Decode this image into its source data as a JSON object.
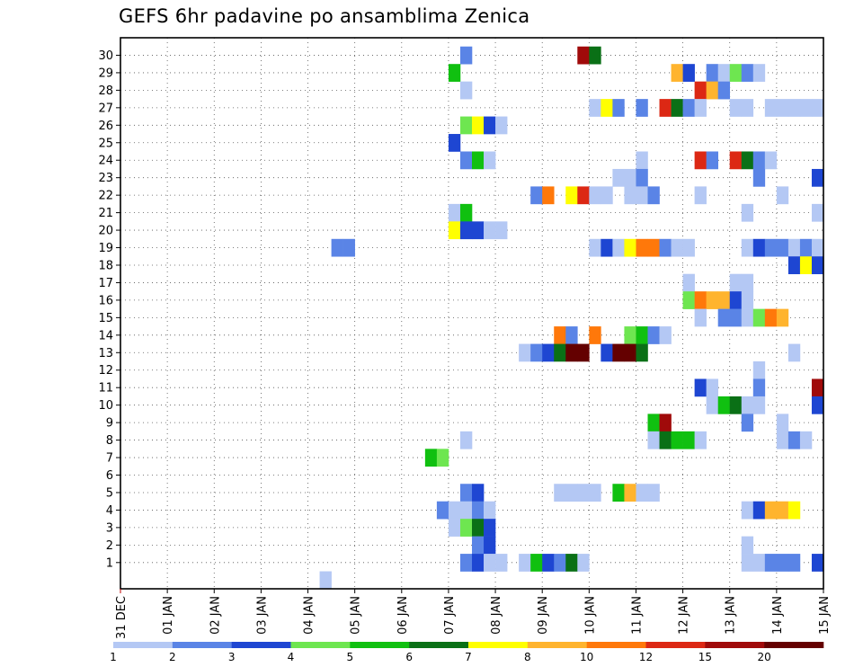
{
  "chart_data": {
    "type": "heatmap",
    "title": "GEFS 6hr padavine po ansamblima Zenica",
    "xlabel": "",
    "ylabel": "",
    "x_ticks": [
      "31 DEC",
      "01 JAN",
      "02 JAN",
      "03 JAN",
      "04 JAN",
      "05 JAN",
      "06 JAN",
      "07 JAN",
      "08 JAN",
      "09 JAN",
      "10 JAN",
      "11 JAN",
      "12 JAN",
      "13 JAN",
      "14 JAN",
      "15 JAN"
    ],
    "y_ticks": [
      "1",
      "2",
      "3",
      "4",
      "5",
      "6",
      "7",
      "8",
      "9",
      "10",
      "11",
      "12",
      "13",
      "14",
      "15",
      "16",
      "17",
      "18",
      "19",
      "20",
      "21",
      "22",
      "23",
      "24",
      "25",
      "26",
      "27",
      "28",
      "29",
      "30"
    ],
    "time_step_hours": 6,
    "members": 30,
    "grid": "dotted",
    "colorbar": {
      "position": "bottom",
      "labels": [
        "1",
        "2",
        "3",
        "4",
        "5",
        "6",
        "7",
        "8",
        "10",
        "12",
        "15",
        "20"
      ],
      "colors": [
        "#b4c8f4",
        "#5a84e6",
        "#1e46d2",
        "#6ee650",
        "#10c010",
        "#0a7016",
        "#ffff00",
        "#ffb42e",
        "#ff780a",
        "#dc2814",
        "#a00a0a",
        "#640000"
      ]
    },
    "cells": [
      {
        "m": 30,
        "t": 29,
        "c": 1
      },
      {
        "m": 30,
        "t": 39,
        "c": 10
      },
      {
        "m": 30,
        "t": 40,
        "c": 5
      },
      {
        "m": 29,
        "t": 28,
        "c": 4
      },
      {
        "m": 29,
        "t": 47,
        "c": 7
      },
      {
        "m": 29,
        "t": 48,
        "c": 2
      },
      {
        "m": 29,
        "t": 50,
        "c": 1
      },
      {
        "m": 29,
        "t": 51,
        "c": 0
      },
      {
        "m": 29,
        "t": 52,
        "c": 3
      },
      {
        "m": 29,
        "t": 53,
        "c": 1
      },
      {
        "m": 29,
        "t": 54,
        "c": 0
      },
      {
        "m": 28,
        "t": 29,
        "c": 0
      },
      {
        "m": 28,
        "t": 49,
        "c": 9
      },
      {
        "m": 28,
        "t": 50,
        "c": 7
      },
      {
        "m": 28,
        "t": 51,
        "c": 1
      },
      {
        "m": 27,
        "t": 40,
        "c": 0
      },
      {
        "m": 27,
        "t": 41,
        "c": 6
      },
      {
        "m": 27,
        "t": 42,
        "c": 1
      },
      {
        "m": 27,
        "t": 44,
        "c": 1
      },
      {
        "m": 27,
        "t": 46,
        "c": 9
      },
      {
        "m": 27,
        "t": 47,
        "c": 5
      },
      {
        "m": 27,
        "t": 48,
        "c": 1
      },
      {
        "m": 27,
        "t": 49,
        "c": 0
      },
      {
        "m": 27,
        "t": 52,
        "c": 0
      },
      {
        "m": 27,
        "t": 53,
        "c": 0
      },
      {
        "m": 27,
        "t": 55,
        "c": 0
      },
      {
        "m": 27,
        "t": 56,
        "c": 0
      },
      {
        "m": 27,
        "t": 57,
        "c": 0
      },
      {
        "m": 27,
        "t": 58,
        "c": 0
      },
      {
        "m": 27,
        "t": 59,
        "c": 0
      },
      {
        "m": 26,
        "t": 29,
        "c": 3
      },
      {
        "m": 26,
        "t": 30,
        "c": 6
      },
      {
        "m": 26,
        "t": 31,
        "c": 2
      },
      {
        "m": 26,
        "t": 32,
        "c": 0
      },
      {
        "m": 25,
        "t": 28,
        "c": 2
      },
      {
        "m": 24,
        "t": 29,
        "c": 1
      },
      {
        "m": 24,
        "t": 30,
        "c": 4
      },
      {
        "m": 24,
        "t": 31,
        "c": 0
      },
      {
        "m": 24,
        "t": 44,
        "c": 0
      },
      {
        "m": 24,
        "t": 49,
        "c": 9
      },
      {
        "m": 24,
        "t": 50,
        "c": 1
      },
      {
        "m": 24,
        "t": 52,
        "c": 9
      },
      {
        "m": 24,
        "t": 53,
        "c": 5
      },
      {
        "m": 24,
        "t": 54,
        "c": 1
      },
      {
        "m": 24,
        "t": 55,
        "c": 0
      },
      {
        "m": 23,
        "t": 42,
        "c": 0
      },
      {
        "m": 23,
        "t": 43,
        "c": 0
      },
      {
        "m": 23,
        "t": 44,
        "c": 1
      },
      {
        "m": 23,
        "t": 54,
        "c": 1
      },
      {
        "m": 23,
        "t": 59,
        "c": 2
      },
      {
        "m": 22,
        "t": 35,
        "c": 1
      },
      {
        "m": 22,
        "t": 36,
        "c": 8
      },
      {
        "m": 22,
        "t": 38,
        "c": 6
      },
      {
        "m": 22,
        "t": 39,
        "c": 9
      },
      {
        "m": 22,
        "t": 40,
        "c": 0
      },
      {
        "m": 22,
        "t": 41,
        "c": 0
      },
      {
        "m": 22,
        "t": 43,
        "c": 0
      },
      {
        "m": 22,
        "t": 44,
        "c": 0
      },
      {
        "m": 22,
        "t": 45,
        "c": 1
      },
      {
        "m": 22,
        "t": 49,
        "c": 0
      },
      {
        "m": 22,
        "t": 56,
        "c": 0
      },
      {
        "m": 21,
        "t": 28,
        "c": 0
      },
      {
        "m": 21,
        "t": 29,
        "c": 4
      },
      {
        "m": 21,
        "t": 53,
        "c": 0
      },
      {
        "m": 21,
        "t": 59,
        "c": 0
      },
      {
        "m": 20,
        "t": 28,
        "c": 6
      },
      {
        "m": 20,
        "t": 29,
        "c": 2
      },
      {
        "m": 20,
        "t": 30,
        "c": 2
      },
      {
        "m": 20,
        "t": 31,
        "c": 0
      },
      {
        "m": 20,
        "t": 32,
        "c": 0
      },
      {
        "m": 19,
        "t": 18,
        "c": 1
      },
      {
        "m": 19,
        "t": 19,
        "c": 1
      },
      {
        "m": 19,
        "t": 40,
        "c": 0
      },
      {
        "m": 19,
        "t": 41,
        "c": 2
      },
      {
        "m": 19,
        "t": 42,
        "c": 0
      },
      {
        "m": 19,
        "t": 43,
        "c": 6
      },
      {
        "m": 19,
        "t": 44,
        "c": 8
      },
      {
        "m": 19,
        "t": 45,
        "c": 8
      },
      {
        "m": 19,
        "t": 46,
        "c": 1
      },
      {
        "m": 19,
        "t": 47,
        "c": 0
      },
      {
        "m": 19,
        "t": 48,
        "c": 0
      },
      {
        "m": 19,
        "t": 53,
        "c": 0
      },
      {
        "m": 19,
        "t": 54,
        "c": 2
      },
      {
        "m": 19,
        "t": 55,
        "c": 1
      },
      {
        "m": 19,
        "t": 56,
        "c": 1
      },
      {
        "m": 19,
        "t": 57,
        "c": 0
      },
      {
        "m": 19,
        "t": 58,
        "c": 1
      },
      {
        "m": 19,
        "t": 59,
        "c": 0
      },
      {
        "m": 18,
        "t": 57,
        "c": 2
      },
      {
        "m": 18,
        "t": 58,
        "c": 6
      },
      {
        "m": 18,
        "t": 59,
        "c": 2
      },
      {
        "m": 17,
        "t": 48,
        "c": 0
      },
      {
        "m": 17,
        "t": 52,
        "c": 0
      },
      {
        "m": 17,
        "t": 53,
        "c": 0
      },
      {
        "m": 16,
        "t": 48,
        "c": 3
      },
      {
        "m": 16,
        "t": 49,
        "c": 8
      },
      {
        "m": 16,
        "t": 50,
        "c": 7
      },
      {
        "m": 16,
        "t": 51,
        "c": 7
      },
      {
        "m": 16,
        "t": 52,
        "c": 2
      },
      {
        "m": 16,
        "t": 53,
        "c": 0
      },
      {
        "m": 15,
        "t": 49,
        "c": 0
      },
      {
        "m": 15,
        "t": 51,
        "c": 1
      },
      {
        "m": 15,
        "t": 52,
        "c": 1
      },
      {
        "m": 15,
        "t": 53,
        "c": 0
      },
      {
        "m": 15,
        "t": 54,
        "c": 3
      },
      {
        "m": 15,
        "t": 55,
        "c": 8
      },
      {
        "m": 15,
        "t": 56,
        "c": 7
      },
      {
        "m": 14,
        "t": 37,
        "c": 8
      },
      {
        "m": 14,
        "t": 38,
        "c": 1
      },
      {
        "m": 14,
        "t": 40,
        "c": 8
      },
      {
        "m": 14,
        "t": 43,
        "c": 3
      },
      {
        "m": 14,
        "t": 44,
        "c": 4
      },
      {
        "m": 14,
        "t": 45,
        "c": 1
      },
      {
        "m": 14,
        "t": 46,
        "c": 0
      },
      {
        "m": 13,
        "t": 34,
        "c": 0
      },
      {
        "m": 13,
        "t": 35,
        "c": 1
      },
      {
        "m": 13,
        "t": 36,
        "c": 2
      },
      {
        "m": 13,
        "t": 37,
        "c": 5
      },
      {
        "m": 13,
        "t": 38,
        "c": 11
      },
      {
        "m": 13,
        "t": 39,
        "c": 11
      },
      {
        "m": 13,
        "t": 41,
        "c": 2
      },
      {
        "m": 13,
        "t": 42,
        "c": 11
      },
      {
        "m": 13,
        "t": 43,
        "c": 11
      },
      {
        "m": 13,
        "t": 44,
        "c": 5
      },
      {
        "m": 13,
        "t": 57,
        "c": 0
      },
      {
        "m": 12,
        "t": 54,
        "c": 0
      },
      {
        "m": 11,
        "t": 49,
        "c": 2
      },
      {
        "m": 11,
        "t": 50,
        "c": 0
      },
      {
        "m": 11,
        "t": 54,
        "c": 1
      },
      {
        "m": 11,
        "t": 59,
        "c": 10
      },
      {
        "m": 10,
        "t": 50,
        "c": 0
      },
      {
        "m": 10,
        "t": 51,
        "c": 4
      },
      {
        "m": 10,
        "t": 52,
        "c": 5
      },
      {
        "m": 10,
        "t": 53,
        "c": 0
      },
      {
        "m": 10,
        "t": 54,
        "c": 0
      },
      {
        "m": 10,
        "t": 59,
        "c": 2
      },
      {
        "m": 9,
        "t": 45,
        "c": 4
      },
      {
        "m": 9,
        "t": 46,
        "c": 10
      },
      {
        "m": 9,
        "t": 53,
        "c": 1
      },
      {
        "m": 9,
        "t": 56,
        "c": 0
      },
      {
        "m": 8,
        "t": 29,
        "c": 0
      },
      {
        "m": 8,
        "t": 45,
        "c": 0
      },
      {
        "m": 8,
        "t": 46,
        "c": 5
      },
      {
        "m": 8,
        "t": 47,
        "c": 4
      },
      {
        "m": 8,
        "t": 48,
        "c": 4
      },
      {
        "m": 8,
        "t": 49,
        "c": 0
      },
      {
        "m": 8,
        "t": 56,
        "c": 0
      },
      {
        "m": 8,
        "t": 57,
        "c": 1
      },
      {
        "m": 8,
        "t": 58,
        "c": 0
      },
      {
        "m": 7,
        "t": 26,
        "c": 4
      },
      {
        "m": 7,
        "t": 27,
        "c": 3
      },
      {
        "m": 5,
        "t": 29,
        "c": 1
      },
      {
        "m": 5,
        "t": 30,
        "c": 2
      },
      {
        "m": 5,
        "t": 37,
        "c": 0
      },
      {
        "m": 5,
        "t": 38,
        "c": 0
      },
      {
        "m": 5,
        "t": 39,
        "c": 0
      },
      {
        "m": 5,
        "t": 40,
        "c": 0
      },
      {
        "m": 5,
        "t": 42,
        "c": 4
      },
      {
        "m": 5,
        "t": 43,
        "c": 7
      },
      {
        "m": 5,
        "t": 44,
        "c": 0
      },
      {
        "m": 5,
        "t": 45,
        "c": 0
      },
      {
        "m": 4,
        "t": 27,
        "c": 1
      },
      {
        "m": 4,
        "t": 28,
        "c": 0
      },
      {
        "m": 4,
        "t": 29,
        "c": 0
      },
      {
        "m": 4,
        "t": 30,
        "c": 1
      },
      {
        "m": 4,
        "t": 31,
        "c": 0
      },
      {
        "m": 4,
        "t": 53,
        "c": 0
      },
      {
        "m": 4,
        "t": 54,
        "c": 2
      },
      {
        "m": 4,
        "t": 55,
        "c": 7
      },
      {
        "m": 4,
        "t": 56,
        "c": 7
      },
      {
        "m": 4,
        "t": 57,
        "c": 6
      },
      {
        "m": 3,
        "t": 28,
        "c": 0
      },
      {
        "m": 3,
        "t": 29,
        "c": 3
      },
      {
        "m": 3,
        "t": 30,
        "c": 5
      },
      {
        "m": 3,
        "t": 31,
        "c": 2
      },
      {
        "m": 2,
        "t": 30,
        "c": 1
      },
      {
        "m": 2,
        "t": 31,
        "c": 2
      },
      {
        "m": 2,
        "t": 53,
        "c": 0
      },
      {
        "m": 1,
        "t": 29,
        "c": 1
      },
      {
        "m": 1,
        "t": 30,
        "c": 2
      },
      {
        "m": 1,
        "t": 31,
        "c": 0
      },
      {
        "m": 1,
        "t": 32,
        "c": 0
      },
      {
        "m": 1,
        "t": 34,
        "c": 0
      },
      {
        "m": 1,
        "t": 35,
        "c": 4
      },
      {
        "m": 1,
        "t": 36,
        "c": 2
      },
      {
        "m": 1,
        "t": 37,
        "c": 1
      },
      {
        "m": 1,
        "t": 38,
        "c": 5
      },
      {
        "m": 1,
        "t": 39,
        "c": 0
      },
      {
        "m": 1,
        "t": 53,
        "c": 0
      },
      {
        "m": 1,
        "t": 54,
        "c": 0
      },
      {
        "m": 1,
        "t": 55,
        "c": 1
      },
      {
        "m": 1,
        "t": 56,
        "c": 1
      },
      {
        "m": 1,
        "t": 57,
        "c": 1
      },
      {
        "m": 1,
        "t": 59,
        "c": 2
      },
      {
        "m": 0,
        "t": 17,
        "c": 0
      }
    ]
  }
}
